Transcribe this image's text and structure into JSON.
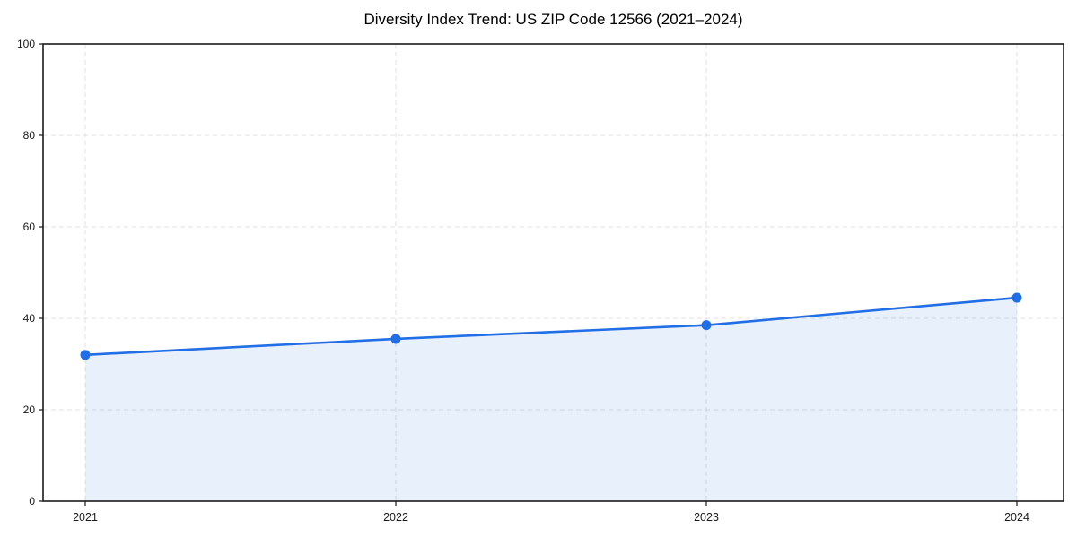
{
  "page": {
    "background": "#ffffff"
  },
  "chart_data": {
    "type": "area",
    "title": "Diversity Index Trend: US ZIP Code 12566 (2021–2024)",
    "categories": [
      "2021",
      "2022",
      "2023",
      "2024"
    ],
    "values": [
      32,
      35.5,
      38.5,
      44.5
    ],
    "xlabel": "",
    "ylabel": "",
    "ylim": [
      0,
      100
    ],
    "yticks": [
      0,
      20,
      40,
      60,
      80,
      100
    ],
    "grid": "dashed-both-axes",
    "legend_position": "none",
    "marker": "circle",
    "colors": {
      "line": "#216ee6",
      "marker": "#216ee6",
      "area_fill": "#216ee6",
      "area_fill_opacity": 0.1,
      "grid": "#e1e1e1",
      "axis": "#1a1a1a",
      "tick_text": "#1a1a1a",
      "title_text": "#000000"
    }
  }
}
